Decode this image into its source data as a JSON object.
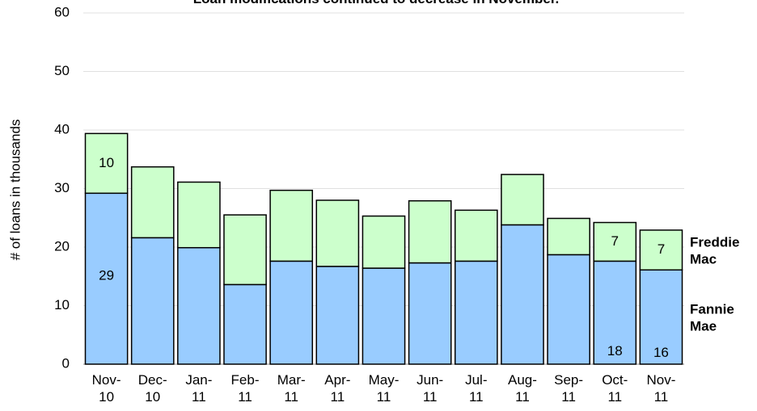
{
  "chart_data": {
    "type": "stacked-bar",
    "title": "Loan modifications continued to decrease in November.",
    "y_label": "# of loans in thousands",
    "categories": [
      "Nov-10",
      "Dec-10",
      "Jan-11",
      "Feb-11",
      "Mar-11",
      "Apr-11",
      "May-11",
      "Jun-11",
      "Jul-11",
      "Aug-11",
      "Sep-11",
      "Oct-11",
      "Nov-11"
    ],
    "series": [
      {
        "name": "Fannie Mae",
        "color": "#99ccff",
        "values": [
          29.2,
          21.6,
          19.9,
          13.6,
          17.6,
          16.7,
          16.4,
          17.3,
          17.6,
          23.8,
          18.7,
          17.6,
          16.1
        ],
        "value_labels": [
          "29",
          null,
          null,
          null,
          null,
          null,
          null,
          null,
          null,
          null,
          null,
          "18",
          "16"
        ]
      },
      {
        "name": "Freddie Mac",
        "color": "#ccffcc",
        "values": [
          10.2,
          12.1,
          11.2,
          11.9,
          12.1,
          11.3,
          8.9,
          10.6,
          8.7,
          8.6,
          6.2,
          6.6,
          6.8
        ],
        "value_labels": [
          "10",
          null,
          null,
          null,
          null,
          null,
          null,
          null,
          null,
          null,
          null,
          "7",
          "7"
        ]
      }
    ],
    "ylim": [
      0,
      60
    ],
    "yticks": [
      0,
      10,
      20,
      30,
      40,
      50,
      60
    ],
    "grid": true
  }
}
